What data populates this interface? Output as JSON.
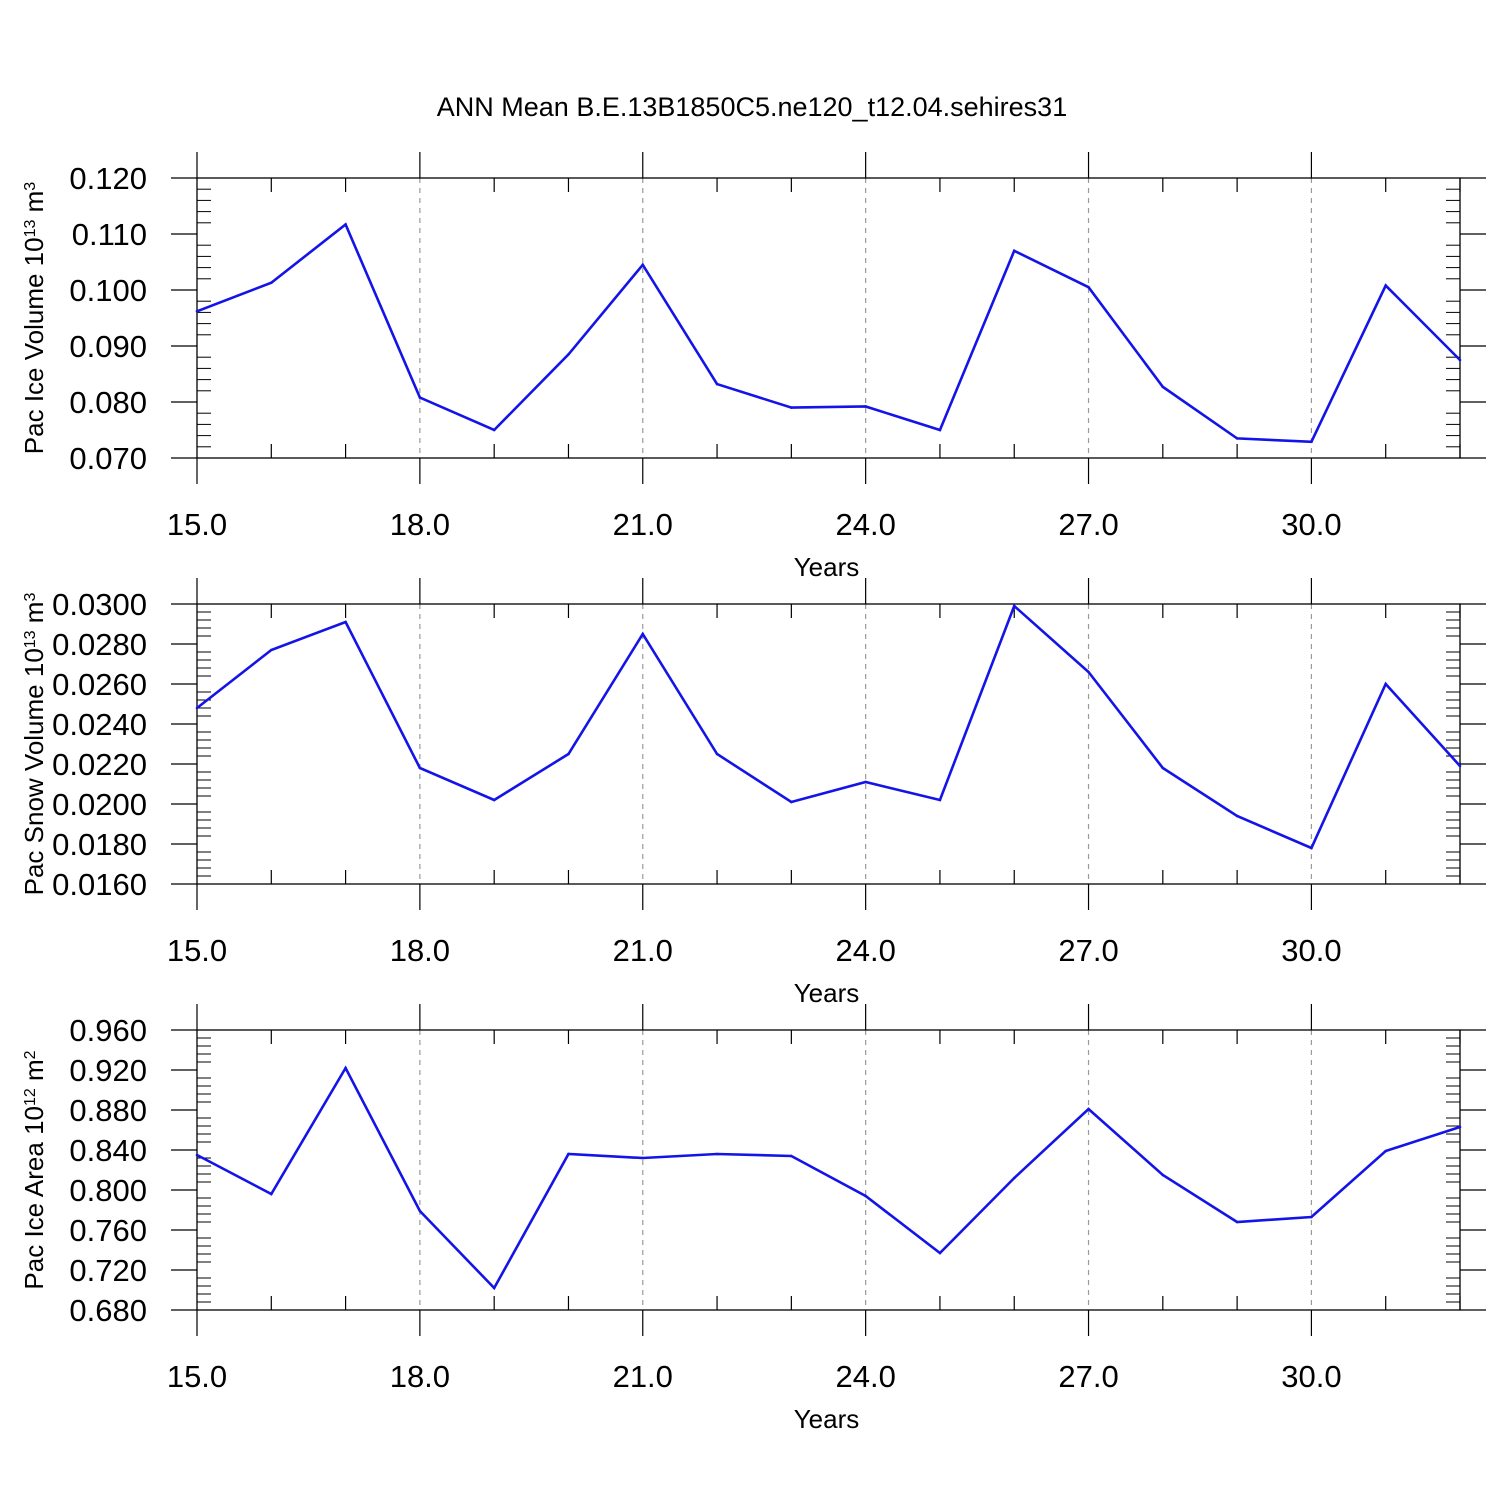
{
  "title": "ANN Mean B.E.13B1850C5.ne120_t12.04.sehires31",
  "colors": {
    "line": "#1414e8",
    "frame": "#000000",
    "grid": "#9a9a9a"
  },
  "chart_data": [
    {
      "type": "line",
      "xlabel": "Years",
      "ylabel": {
        "text": "Pac Ice Volume 10",
        "sup": "13",
        "unit": " m",
        "unit_sup": "3"
      },
      "xlim": [
        15,
        32
      ],
      "ylim": [
        0.07,
        0.12
      ],
      "xticks": [
        15,
        18,
        21,
        24,
        27,
        30
      ],
      "xtick_labels": [
        "15.0",
        "18.0",
        "21.0",
        "24.0",
        "27.0",
        "30.0"
      ],
      "yticks": [
        0.07,
        0.08,
        0.09,
        0.1,
        0.11,
        0.12
      ],
      "ytick_labels": [
        "0.070",
        "0.080",
        "0.090",
        "0.100",
        "0.110",
        "0.120"
      ],
      "x": [
        15,
        16,
        17,
        18,
        19,
        20,
        21,
        22,
        23,
        24,
        25,
        26,
        27,
        28,
        29,
        30,
        31,
        32
      ],
      "series": [
        {
          "values": [
            0.0962,
            0.1013,
            0.1117,
            0.0808,
            0.075,
            0.0885,
            0.1045,
            0.0832,
            0.079,
            0.0792,
            0.075,
            0.107,
            0.1005,
            0.0827,
            0.0735,
            0.0729,
            0.1008,
            0.0875
          ]
        }
      ],
      "grid": "x-dashed"
    },
    {
      "type": "line",
      "xlabel": "Years",
      "ylabel": {
        "text": "Pac Snow Volume 10",
        "sup": "13",
        "unit": " m",
        "unit_sup": "3"
      },
      "xlim": [
        15,
        32
      ],
      "ylim": [
        0.016,
        0.03
      ],
      "xticks": [
        15,
        18,
        21,
        24,
        27,
        30
      ],
      "xtick_labels": [
        "15.0",
        "18.0",
        "21.0",
        "24.0",
        "27.0",
        "30.0"
      ],
      "yticks": [
        0.016,
        0.018,
        0.02,
        0.022,
        0.024,
        0.026,
        0.028,
        0.03
      ],
      "ytick_labels": [
        "0.0160",
        "0.0180",
        "0.0200",
        "0.0220",
        "0.0240",
        "0.0260",
        "0.0280",
        "0.0300"
      ],
      "x": [
        15,
        16,
        17,
        18,
        19,
        20,
        21,
        22,
        23,
        24,
        25,
        26,
        27,
        28,
        29,
        30,
        31,
        32
      ],
      "series": [
        {
          "values": [
            0.0248,
            0.0277,
            0.0291,
            0.0218,
            0.0202,
            0.0225,
            0.0285,
            0.0225,
            0.0201,
            0.0211,
            0.0202,
            0.0299,
            0.0266,
            0.0218,
            0.0194,
            0.0178,
            0.026,
            0.0219
          ]
        }
      ],
      "grid": "x-dashed"
    },
    {
      "type": "line",
      "xlabel": "Years",
      "ylabel": {
        "text": "Pac Ice Area 10",
        "sup": "12",
        "unit": " m",
        "unit_sup": "2"
      },
      "xlim": [
        15,
        32
      ],
      "ylim": [
        0.68,
        0.96
      ],
      "xticks": [
        15,
        18,
        21,
        24,
        27,
        30
      ],
      "xtick_labels": [
        "15.0",
        "18.0",
        "21.0",
        "24.0",
        "27.0",
        "30.0"
      ],
      "yticks": [
        0.68,
        0.72,
        0.76,
        0.8,
        0.84,
        0.88,
        0.92,
        0.96
      ],
      "ytick_labels": [
        "0.680",
        "0.720",
        "0.760",
        "0.800",
        "0.840",
        "0.880",
        "0.920",
        "0.960"
      ],
      "x": [
        15,
        16,
        17,
        18,
        19,
        20,
        21,
        22,
        23,
        24,
        25,
        26,
        27,
        28,
        29,
        30,
        31,
        32
      ],
      "series": [
        {
          "values": [
            0.835,
            0.796,
            0.922,
            0.779,
            0.702,
            0.836,
            0.832,
            0.836,
            0.834,
            0.794,
            0.737,
            0.812,
            0.881,
            0.815,
            0.768,
            0.773,
            0.839,
            0.863
          ]
        }
      ],
      "grid": "x-dashed"
    }
  ]
}
